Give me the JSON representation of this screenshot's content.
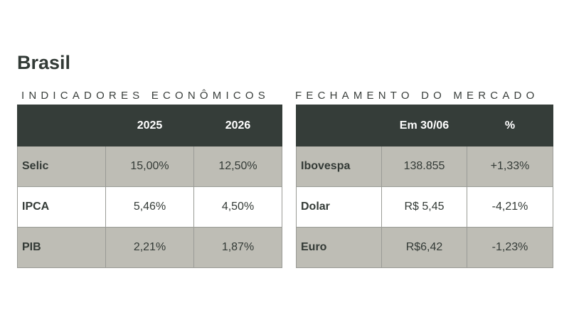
{
  "title": "Brasil",
  "indicadores": {
    "heading": "INDICADORES ECONÔMICOS",
    "columns": [
      "",
      "2025",
      "2026"
    ],
    "rows": [
      {
        "label": "Selic",
        "y2025": "15,00%",
        "y2026": "12,50%"
      },
      {
        "label": "IPCA",
        "y2025": "5,46%",
        "y2026": "4,50%"
      },
      {
        "label": "PIB",
        "y2025": "2,21%",
        "y2026": "1,87%"
      }
    ]
  },
  "mercado": {
    "heading": "FECHAMENTO DO MERCADO",
    "columns": [
      "",
      "Em 30/06",
      "%"
    ],
    "rows": [
      {
        "label": "Ibovespa",
        "value": "138.855",
        "change": "+1,33%"
      },
      {
        "label": "Dolar",
        "value": "R$ 5,45",
        "change": "-4,21%"
      },
      {
        "label": "Euro",
        "value": "R$6,42",
        "change": "-1,23%"
      }
    ]
  },
  "colors": {
    "header_bg": "#353d39",
    "row_gray": "#bebdb5",
    "positive": "#22a25a",
    "negative": "#e0342f"
  }
}
